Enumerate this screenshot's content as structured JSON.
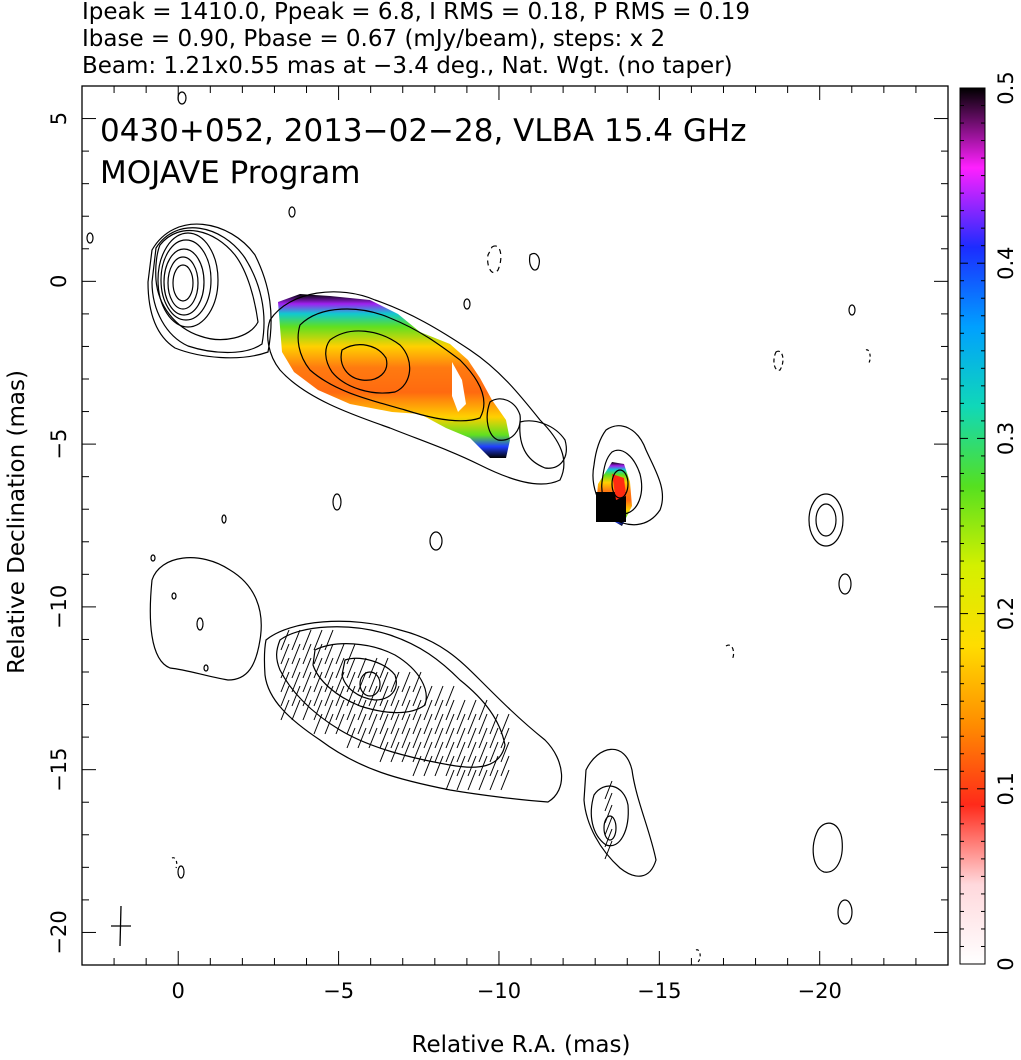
{
  "header": {
    "line1": "Ipeak = 1410.0, Ppeak = 6.8, I RMS = 0.18, P RMS = 0.19",
    "line2": "Ibase = 0.90, Pbase = 0.67 (mJy/beam), steps: x 2",
    "line3": "Beam: 1.21x0.55 mas at −3.4 deg., Nat. Wgt. (no taper)"
  },
  "chart_data": {
    "type": "heatmap",
    "title": "0430+052, 2013−02−28, VLBA 15.4 GHz",
    "subtitle": "MOJAVE Program",
    "xlabel": "Relative R.A. (mas)",
    "ylabel": "Relative Declination (mas)",
    "xlim": [
      3,
      -24
    ],
    "ylim": [
      -21,
      6
    ],
    "x_ticks": [
      0,
      -5,
      -10,
      -15,
      -20
    ],
    "x_tick_labels": [
      "0",
      "−5",
      "−10",
      "−15",
      "−20"
    ],
    "y_ticks": [
      5,
      0,
      -5,
      -10,
      -15,
      -20
    ],
    "y_tick_labels": [
      "5",
      "0",
      "−5",
      "−10",
      "−15",
      "−20"
    ],
    "colorbar": {
      "range": [
        0,
        0.5
      ],
      "ticks": [
        0,
        0.1,
        0.2,
        0.3,
        0.4,
        0.5
      ],
      "tick_labels": [
        "0",
        "0.1",
        "0.2",
        "0.3",
        "0.4",
        "0.5"
      ],
      "stops": [
        "#ffffff",
        "#ffd8dc",
        "#ff2a1a",
        "#ff8c00",
        "#ffdd00",
        "#d4f000",
        "#55e020",
        "#10d8b8",
        "#00a0ff",
        "#1c2cff",
        "#ff20ff",
        "#000000"
      ]
    },
    "fractional_polarization_regions": [
      {
        "name": "inner jet",
        "ra_range": [
          -3.2,
          -10.1
        ],
        "dec_range": [
          -0.4,
          -5.4
        ],
        "fraction_range": [
          0.08,
          0.5
        ]
      },
      {
        "name": "knot",
        "ra_range": [
          -12.9,
          -13.9
        ],
        "dec_range": [
          -5.6,
          -7.4
        ],
        "fraction_range": [
          0.08,
          0.5
        ]
      }
    ],
    "total_intensity_contour_panel": {
      "core_ra": 0.0,
      "core_dec": 0.0,
      "peak_mJy_per_beam": 1410.0,
      "base_mJy_per_beam": 0.9,
      "step_factor": 2
    },
    "polarized_intensity_contour_panel": {
      "offset_dec": -12.5,
      "peak_mJy_per_beam": 6.8,
      "base_mJy_per_beam": 0.67
    },
    "beam": {
      "major_mas": 1.21,
      "minor_mas": 0.55,
      "pa_deg": -3.4
    }
  },
  "colors": {
    "axis": "#000000",
    "contour": "#000000",
    "background": "#ffffff"
  }
}
